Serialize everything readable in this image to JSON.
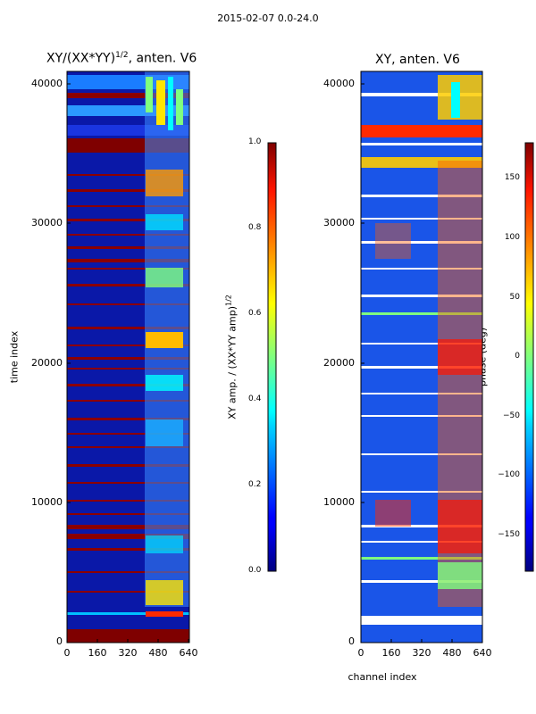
{
  "figure": {
    "suptitle": "2015-02-07 0.0-24.0"
  },
  "chart_data": [
    {
      "type": "heatmap",
      "title": "XY/(XX*YY)",
      "title_exponent": "1/2",
      "title_suffix": ", anten. V6",
      "xlabel": "",
      "ylabel": "time index",
      "xlim": [
        0,
        640
      ],
      "ylim": [
        0,
        41000
      ],
      "xticks": [
        0,
        160,
        320,
        480,
        640
      ],
      "yticks": [
        0,
        10000,
        20000,
        30000,
        40000
      ],
      "colorbar": {
        "label": "XY amp. / (XX*YY amp)",
        "label_exponent": "1/2",
        "range": [
          0.0,
          1.0
        ],
        "ticks": [
          "0.0",
          "0.2",
          "0.4",
          "0.6",
          "0.8",
          "1.0"
        ],
        "colormap": "jet"
      }
    },
    {
      "type": "heatmap",
      "title": "XY, anten. V6",
      "xlabel": "channel index",
      "ylabel": "",
      "xlim": [
        0,
        640
      ],
      "ylim": [
        0,
        41000
      ],
      "xticks": [
        0,
        160,
        320,
        480,
        640
      ],
      "yticks": [
        0,
        10000,
        20000,
        30000,
        40000
      ],
      "colorbar": {
        "label": "phase (deg)",
        "range": [
          -180,
          180
        ],
        "ticks": [
          "150",
          "100",
          "50",
          "0",
          "−50",
          "−100",
          "−150"
        ],
        "colormap": "jet"
      }
    }
  ]
}
